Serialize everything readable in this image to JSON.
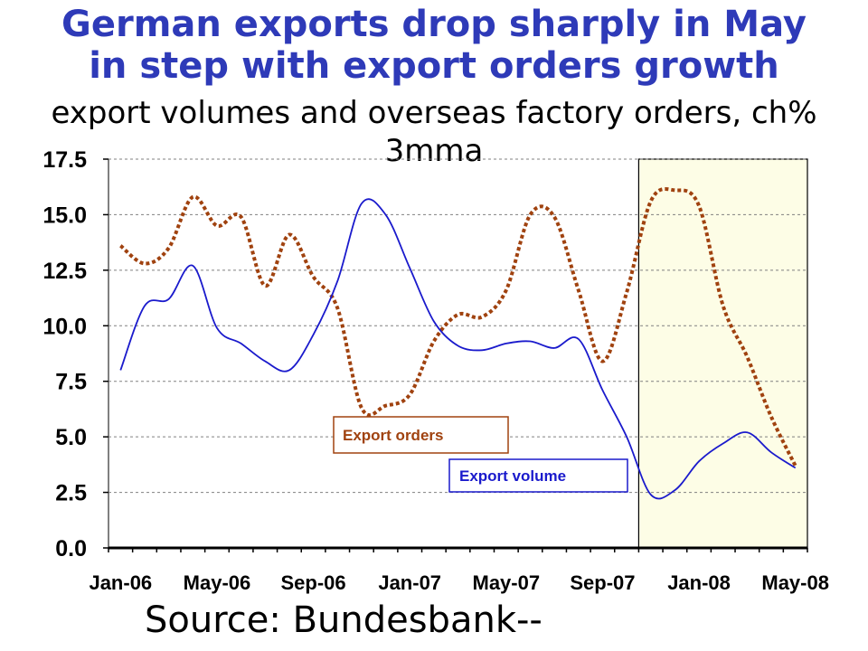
{
  "title_line1": "German exports drop sharply in May",
  "title_line2": "in step with export orders growth",
  "subtitle": "export volumes and overseas factory orders, ch% 3mma",
  "source": "Source: Bundesbank--",
  "colors": {
    "title": "#2e3ab8",
    "export_volume": "#1a1acc",
    "export_orders": "#a0420f",
    "highlight_fill": "#fdfde6",
    "grid": "#808080"
  },
  "chart_data": {
    "type": "line",
    "ylim": [
      0,
      17.5
    ],
    "yticks": [
      "0.0",
      "2.5",
      "5.0",
      "7.5",
      "10.0",
      "12.5",
      "15.0",
      "17.5"
    ],
    "xticks": [
      "Jan-06",
      "May-06",
      "Sep-06",
      "Jan-07",
      "May-07",
      "Sep-07",
      "Jan-08",
      "May-08"
    ],
    "grid": true,
    "highlight_region": [
      "Nov-07",
      "May-08"
    ],
    "series": [
      {
        "name": "Export volume",
        "style": "solid",
        "x": [
          "Jan-06",
          "Feb-06",
          "Mar-06",
          "Apr-06",
          "May-06",
          "Jun-06",
          "Jul-06",
          "Aug-06",
          "Sep-06",
          "Oct-06",
          "Nov-06",
          "Dec-06",
          "Jan-07",
          "Feb-07",
          "Mar-07",
          "Apr-07",
          "May-07",
          "Jun-07",
          "Jul-07",
          "Aug-07",
          "Sep-07",
          "Oct-07",
          "Nov-07",
          "Dec-07",
          "Jan-08",
          "Feb-08",
          "Mar-08",
          "Apr-08",
          "May-08"
        ],
        "values": [
          8.0,
          10.9,
          11.2,
          12.7,
          9.9,
          9.2,
          8.4,
          8.0,
          9.6,
          12.0,
          15.5,
          15.0,
          12.6,
          10.2,
          9.1,
          8.9,
          9.2,
          9.3,
          9.0,
          9.4,
          7.1,
          5.0,
          2.4,
          2.6,
          3.9,
          4.7,
          5.2,
          4.3,
          3.6
        ]
      },
      {
        "name": "Export orders",
        "style": "dotted",
        "x": [
          "Jan-06",
          "Feb-06",
          "Mar-06",
          "Apr-06",
          "May-06",
          "Jun-06",
          "Jul-06",
          "Aug-06",
          "Sep-06",
          "Oct-06",
          "Nov-06",
          "Dec-06",
          "Jan-07",
          "Feb-07",
          "Mar-07",
          "Apr-07",
          "May-07",
          "Jun-07",
          "Jul-07",
          "Aug-07",
          "Sep-07",
          "Oct-07",
          "Nov-07",
          "Dec-07",
          "Jan-08",
          "Feb-08",
          "Mar-08",
          "Apr-08",
          "May-08"
        ],
        "values": [
          13.6,
          12.8,
          13.5,
          15.8,
          14.5,
          14.9,
          11.8,
          14.1,
          12.2,
          10.8,
          6.3,
          6.4,
          6.9,
          9.3,
          10.5,
          10.4,
          11.6,
          15.0,
          14.9,
          11.6,
          8.4,
          11.5,
          15.6,
          16.1,
          15.4,
          10.9,
          8.6,
          5.9,
          3.7
        ]
      }
    ]
  }
}
